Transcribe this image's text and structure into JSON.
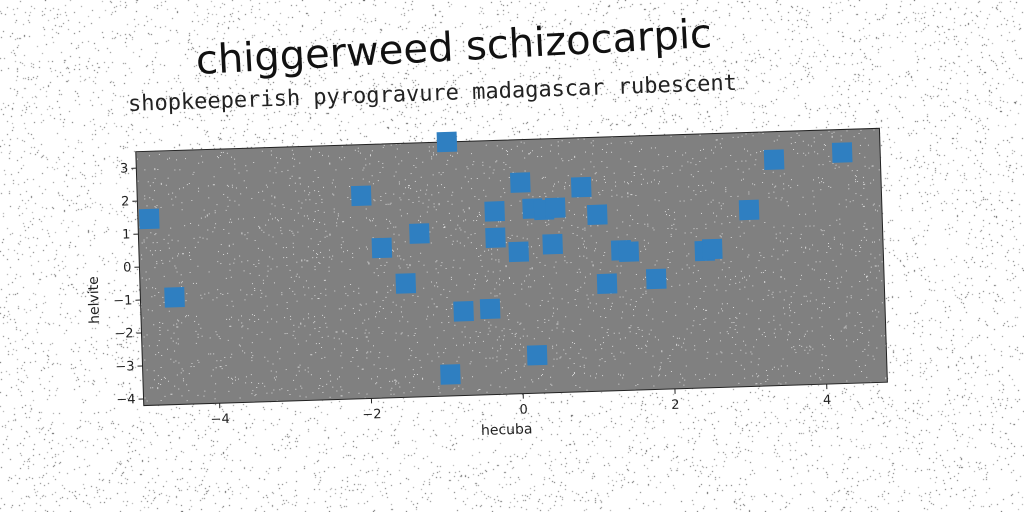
{
  "chart_data": {
    "type": "scatter",
    "title": "chiggerweed schizocarpic",
    "subtitle": "shopkeeperish pyrogravure madagascar rubescent",
    "xlabel": "hecuba",
    "ylabel": "helvite",
    "xlim": [
      -5.0,
      4.8
    ],
    "ylim": [
      -4.2,
      3.5
    ],
    "xticks": [
      -4,
      -2,
      0,
      2,
      4
    ],
    "yticks": [
      -4,
      -3,
      -2,
      -1,
      0,
      1,
      2,
      3
    ],
    "grid": false,
    "background": "#808080",
    "marker": "square",
    "marker_color": "#2f7fc1",
    "points": [
      {
        "x": -4.85,
        "y": 1.45
      },
      {
        "x": -4.55,
        "y": -0.95
      },
      {
        "x": -2.05,
        "y": 1.95
      },
      {
        "x": -1.8,
        "y": 0.35
      },
      {
        "x": -1.5,
        "y": -0.75
      },
      {
        "x": -1.3,
        "y": 0.75
      },
      {
        "x": -0.9,
        "y": 3.5
      },
      {
        "x": -0.95,
        "y": -3.55
      },
      {
        "x": -0.75,
        "y": -1.65
      },
      {
        "x": -0.4,
        "y": -1.6
      },
      {
        "x": -0.3,
        "y": 1.35
      },
      {
        "x": -0.3,
        "y": 0.55
      },
      {
        "x": 0.0,
        "y": 0.1
      },
      {
        "x": 0.05,
        "y": 2.2
      },
      {
        "x": 0.2,
        "y": 1.4
      },
      {
        "x": 0.35,
        "y": 1.35
      },
      {
        "x": 0.5,
        "y": 1.4
      },
      {
        "x": 0.45,
        "y": 0.3
      },
      {
        "x": 0.2,
        "y": -3.05
      },
      {
        "x": 0.85,
        "y": 2.0
      },
      {
        "x": 1.05,
        "y": 1.15
      },
      {
        "x": 1.15,
        "y": -0.95
      },
      {
        "x": 1.35,
        "y": 0.05
      },
      {
        "x": 1.45,
        "y": 0.0
      },
      {
        "x": 1.8,
        "y": -0.85
      },
      {
        "x": 2.45,
        "y": -0.05
      },
      {
        "x": 2.55,
        "y": 0.0
      },
      {
        "x": 3.05,
        "y": 1.15
      },
      {
        "x": 3.4,
        "y": 2.65
      },
      {
        "x": 4.3,
        "y": 2.8
      }
    ]
  }
}
